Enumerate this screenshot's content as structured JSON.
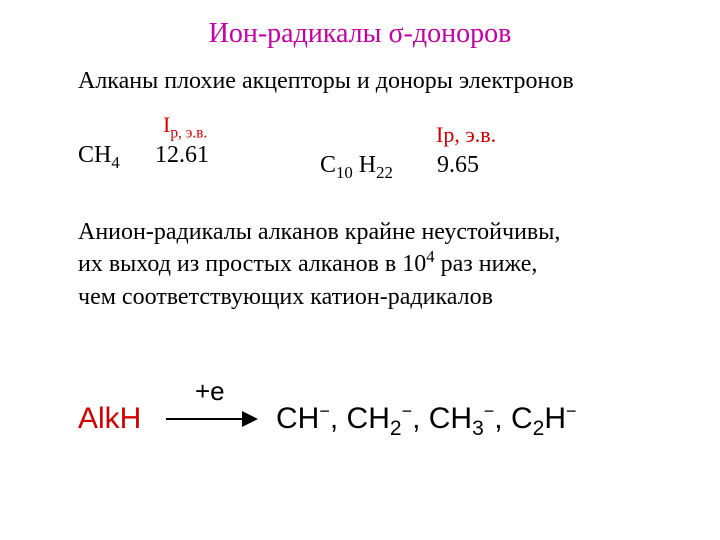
{
  "colors": {
    "title": "#c500a4",
    "accent": "#d40000",
    "text": "#000000",
    "background": "#ffffff"
  },
  "fonts": {
    "body_family": "Times New Roman",
    "formula_family": "Arial",
    "title_size_pt": 28,
    "body_size_pt": 24,
    "formula_size_pt": 30
  },
  "title": "Ион-радикалы σ-доноров",
  "line1": "Алканы плохие акцепторы и доноры электронов",
  "ionization": {
    "label1_pre": "I",
    "label1_sub": "p, э.в.",
    "label2": "Ip, э.в.",
    "row1": {
      "formula_pre": "CH",
      "formula_sub": "4",
      "value": "12.61"
    },
    "row2": {
      "formula_c": "C",
      "formula_csub": "10",
      "formula_sp": " H",
      "formula_hsub": "22",
      "value": "9.65"
    }
  },
  "para": {
    "l1": "Анион-радикалы алканов крайне неустойчивы,",
    "l2a": "их выход из простых алканов в 10",
    "l2sup": "4",
    "l2b": " раз ниже,",
    "l3": "чем соответствующих катион-радикалов"
  },
  "reaction": {
    "reactant": "AlkH",
    "over_arrow": "+e",
    "arrow": {
      "width": 96,
      "height": 30,
      "stroke": "#000000",
      "stroke_width": 2
    },
    "products": [
      {
        "base": "CH",
        "sub": "",
        "sup": "−"
      },
      {
        "base": "CH",
        "sub": "2",
        "sup": "−"
      },
      {
        "base": "CH",
        "sub": "3",
        "sup": "−"
      },
      {
        "base": "C",
        "sub": "2",
        "tail": "H",
        "sup": "−"
      }
    ],
    "sep": ",  "
  }
}
